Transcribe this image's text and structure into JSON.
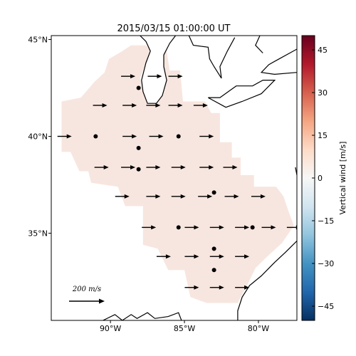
{
  "title": "2015/03/15 01:00:00 UT",
  "map": {
    "lat_range": [
      30.5,
      45.2
    ],
    "lon_range": [
      -94.0,
      -77.4
    ],
    "lat_ticks": [
      {
        "value": 45,
        "label": "45°N"
      },
      {
        "value": 40,
        "label": "40°N"
      },
      {
        "value": 35,
        "label": "35°N"
      }
    ],
    "lon_ticks": [
      {
        "value": -90,
        "label": "90°W"
      },
      {
        "value": -85,
        "label": "85°W"
      },
      {
        "value": -80,
        "label": "80°W"
      }
    ],
    "region_color": "#f7e6df",
    "coast_color": "#000000"
  },
  "scale_arrow": {
    "label": "200 m/s",
    "value": 200
  },
  "colorbar": {
    "label": "Vertical wind [m/s]",
    "min": -50,
    "max": 50,
    "ticks": [
      {
        "value": 45,
        "label": "45"
      },
      {
        "value": 30,
        "label": "30"
      },
      {
        "value": 15,
        "label": "15"
      },
      {
        "value": 0,
        "label": "0"
      },
      {
        "value": -15,
        "label": "−15"
      },
      {
        "value": -30,
        "label": "−30"
      },
      {
        "value": -45,
        "label": "−45"
      }
    ],
    "colormap": [
      "#053061",
      "#2166ac",
      "#4393c3",
      "#92c5de",
      "#d1e5f0",
      "#f7f7f7",
      "#fddbc7",
      "#f4a582",
      "#d6604d",
      "#b2182b",
      "#67001f"
    ]
  },
  "chart_data": {
    "type": "scatter",
    "x_label": "",
    "y_label": "",
    "vectors": [
      {
        "lon": -88.8,
        "lat": 43.1,
        "u": 1,
        "v": 0
      },
      {
        "lon": -87.0,
        "lat": 43.1,
        "u": 1,
        "v": 0
      },
      {
        "lon": -85.6,
        "lat": 43.1,
        "u": 1,
        "v": 0
      },
      {
        "lon": -90.7,
        "lat": 41.6,
        "u": 1,
        "v": 0
      },
      {
        "lon": -88.7,
        "lat": 41.6,
        "u": 1,
        "v": 0
      },
      {
        "lon": -87.1,
        "lat": 41.6,
        "u": 1,
        "v": 0
      },
      {
        "lon": -85.6,
        "lat": 41.6,
        "u": 1,
        "v": 0
      },
      {
        "lon": -83.9,
        "lat": 41.6,
        "u": 1,
        "v": 0
      },
      {
        "lon": -93.1,
        "lat": 40.0,
        "u": 1,
        "v": 0
      },
      {
        "lon": -88.7,
        "lat": 40.0,
        "u": 1,
        "v": 0
      },
      {
        "lon": -86.9,
        "lat": 40.0,
        "u": 1,
        "v": 0
      },
      {
        "lon": -83.5,
        "lat": 40.0,
        "u": 1,
        "v": 0
      },
      {
        "lon": -90.6,
        "lat": 38.4,
        "u": 1,
        "v": 0
      },
      {
        "lon": -88.8,
        "lat": 38.4,
        "u": 1,
        "v": 0
      },
      {
        "lon": -87.1,
        "lat": 38.4,
        "u": 1,
        "v": 0
      },
      {
        "lon": -85.4,
        "lat": 38.4,
        "u": 1,
        "v": 0
      },
      {
        "lon": -83.5,
        "lat": 38.4,
        "u": 1,
        "v": 0
      },
      {
        "lon": -81.9,
        "lat": 38.4,
        "u": 1,
        "v": 0
      },
      {
        "lon": -89.2,
        "lat": 36.9,
        "u": 1,
        "v": 0
      },
      {
        "lon": -87.1,
        "lat": 36.9,
        "u": 1,
        "v": 0
      },
      {
        "lon": -85.4,
        "lat": 36.9,
        "u": 1,
        "v": 0
      },
      {
        "lon": -83.6,
        "lat": 36.9,
        "u": 1,
        "v": 0
      },
      {
        "lon": -81.8,
        "lat": 36.9,
        "u": 1,
        "v": 0
      },
      {
        "lon": -80.0,
        "lat": 36.9,
        "u": 1,
        "v": 0
      },
      {
        "lon": -87.4,
        "lat": 35.3,
        "u": 1,
        "v": 0
      },
      {
        "lon": -84.5,
        "lat": 35.3,
        "u": 1,
        "v": 0
      },
      {
        "lon": -82.8,
        "lat": 35.3,
        "u": 1,
        "v": 0
      },
      {
        "lon": -81.1,
        "lat": 35.3,
        "u": 1,
        "v": 0
      },
      {
        "lon": -79.3,
        "lat": 35.3,
        "u": 1,
        "v": 0
      },
      {
        "lon": -77.6,
        "lat": 35.3,
        "u": 1,
        "v": 0
      },
      {
        "lon": -86.4,
        "lat": 33.8,
        "u": 1,
        "v": 0
      },
      {
        "lon": -84.5,
        "lat": 33.8,
        "u": 1,
        "v": 0
      },
      {
        "lon": -82.8,
        "lat": 33.8,
        "u": 1,
        "v": 0
      },
      {
        "lon": -81.1,
        "lat": 33.8,
        "u": 1,
        "v": 0
      },
      {
        "lon": -84.5,
        "lat": 32.2,
        "u": 1,
        "v": 0
      },
      {
        "lon": -82.8,
        "lat": 32.2,
        "u": 1,
        "v": 0
      },
      {
        "lon": -81.1,
        "lat": 32.2,
        "u": 1,
        "v": 0
      }
    ],
    "stations": [
      {
        "lon": -88.1,
        "lat": 42.5
      },
      {
        "lon": -91.0,
        "lat": 40.0
      },
      {
        "lon": -88.1,
        "lat": 39.4
      },
      {
        "lon": -85.4,
        "lat": 40.0
      },
      {
        "lon": -88.1,
        "lat": 38.3
      },
      {
        "lon": -83.0,
        "lat": 37.1
      },
      {
        "lon": -85.4,
        "lat": 35.3
      },
      {
        "lon": -80.4,
        "lat": 35.3
      },
      {
        "lon": -83.0,
        "lat": 34.2
      },
      {
        "lon": -83.0,
        "lat": 33.1
      }
    ],
    "region_polygon": [
      [
        -89.2,
        44.4
      ],
      [
        -88.6,
        44.7
      ],
      [
        -87.6,
        44.7
      ],
      [
        -87.2,
        44.4
      ],
      [
        -86.2,
        44.4
      ],
      [
        -86.0,
        43.4
      ],
      [
        -85.3,
        43.4
      ],
      [
        -85.1,
        41.8
      ],
      [
        -83.6,
        41.8
      ],
      [
        -83.2,
        41.2
      ],
      [
        -82.6,
        41.2
      ],
      [
        -82.6,
        39.7
      ],
      [
        -81.8,
        39.7
      ],
      [
        -81.8,
        38.9
      ],
      [
        -81.2,
        38.9
      ],
      [
        -81.2,
        38.0
      ],
      [
        -80.3,
        38.0
      ],
      [
        -80.3,
        37.4
      ],
      [
        -78.8,
        37.4
      ],
      [
        -78.3,
        36.9
      ],
      [
        -78.0,
        36.2
      ],
      [
        -77.6,
        35.4
      ],
      [
        -78.4,
        34.5
      ],
      [
        -79.4,
        33.8
      ],
      [
        -80.2,
        33.2
      ],
      [
        -80.7,
        32.4
      ],
      [
        -81.4,
        31.4
      ],
      [
        -83.5,
        31.4
      ],
      [
        -84.6,
        31.7
      ],
      [
        -85.0,
        33.1
      ],
      [
        -86.1,
        33.1
      ],
      [
        -86.8,
        34.2
      ],
      [
        -87.8,
        34.4
      ],
      [
        -87.8,
        36.4
      ],
      [
        -89.0,
        36.4
      ],
      [
        -89.5,
        37.4
      ],
      [
        -91.3,
        37.6
      ],
      [
        -91.5,
        38.2
      ],
      [
        -92.1,
        38.2
      ],
      [
        -92.7,
        39.2
      ],
      [
        -93.3,
        39.2
      ],
      [
        -93.3,
        41.8
      ],
      [
        -92.0,
        42.0
      ],
      [
        -91.1,
        42.8
      ],
      [
        -90.4,
        43.3
      ],
      [
        -90.1,
        44.0
      ]
    ],
    "coastlines": [
      [
        [
          -88.0,
          45.2
        ],
        [
          -87.6,
          44.9
        ],
        [
          -87.3,
          44.4
        ],
        [
          -87.6,
          43.8
        ],
        [
          -87.9,
          42.9
        ],
        [
          -87.8,
          42.3
        ],
        [
          -87.5,
          41.7
        ],
        [
          -86.9,
          41.7
        ],
        [
          -86.5,
          42.1
        ],
        [
          -86.2,
          42.9
        ],
        [
          -86.4,
          43.6
        ],
        [
          -86.4,
          44.2
        ],
        [
          -86.0,
          44.8
        ],
        [
          -85.6,
          45.2
        ]
      ],
      [
        [
          -84.7,
          45.2
        ],
        [
          -84.4,
          44.7
        ],
        [
          -83.4,
          44.6
        ],
        [
          -83.3,
          44.0
        ],
        [
          -83.0,
          43.6
        ],
        [
          -82.5,
          43.0
        ],
        [
          -82.6,
          43.6
        ],
        [
          -82.1,
          44.4
        ],
        [
          -81.6,
          45.1
        ]
      ],
      [
        [
          -79.9,
          45.2
        ],
        [
          -80.2,
          44.7
        ],
        [
          -79.7,
          44.3
        ]
      ],
      [
        [
          -77.4,
          44.5
        ],
        [
          -78.6,
          44.0
        ],
        [
          -79.3,
          43.7
        ],
        [
          -79.8,
          43.3
        ],
        [
          -78.9,
          43.2
        ],
        [
          -77.4,
          43.3
        ]
      ],
      [
        [
          -83.4,
          42.0
        ],
        [
          -82.6,
          42.0
        ],
        [
          -81.5,
          42.6
        ],
        [
          -80.4,
          42.6
        ],
        [
          -79.7,
          42.9
        ],
        [
          -78.9,
          42.9
        ],
        [
          -79.8,
          42.2
        ],
        [
          -81.1,
          41.8
        ],
        [
          -82.2,
          41.5
        ],
        [
          -83.4,
          42.0
        ]
      ],
      [
        [
          -77.4,
          38.0
        ],
        [
          -77.5,
          38.4
        ]
      ],
      [
        [
          -77.4,
          34.6
        ],
        [
          -78.2,
          34.0
        ],
        [
          -78.9,
          33.5
        ],
        [
          -79.8,
          32.8
        ],
        [
          -80.6,
          32.3
        ],
        [
          -81.1,
          31.7
        ],
        [
          -81.4,
          31.0
        ],
        [
          -81.4,
          30.5
        ]
      ],
      [
        [
          -85.2,
          30.5
        ],
        [
          -85.4,
          30.9
        ],
        [
          -86.1,
          30.7
        ],
        [
          -87.0,
          30.6
        ],
        [
          -87.5,
          30.9
        ],
        [
          -88.2,
          30.6
        ],
        [
          -88.6,
          30.8
        ],
        [
          -89.2,
          30.5
        ],
        [
          -89.7,
          30.8
        ],
        [
          -90.5,
          30.5
        ]
      ]
    ],
    "lakes": [
      [
        [
          -88.0,
          43.0
        ],
        [
          -87.8,
          42.3
        ],
        [
          -87.5,
          41.7
        ],
        [
          -86.9,
          41.7
        ],
        [
          -86.5,
          42.1
        ],
        [
          -86.2,
          42.9
        ],
        [
          -86.4,
          43.6
        ],
        [
          -86.4,
          44.2
        ],
        [
          -86.0,
          44.8
        ],
        [
          -85.6,
          45.2
        ],
        [
          -88.0,
          45.2
        ],
        [
          -87.6,
          44.9
        ],
        [
          -87.3,
          44.4
        ],
        [
          -87.6,
          43.8
        ],
        [
          -88.0,
          43.0
        ]
      ]
    ]
  }
}
